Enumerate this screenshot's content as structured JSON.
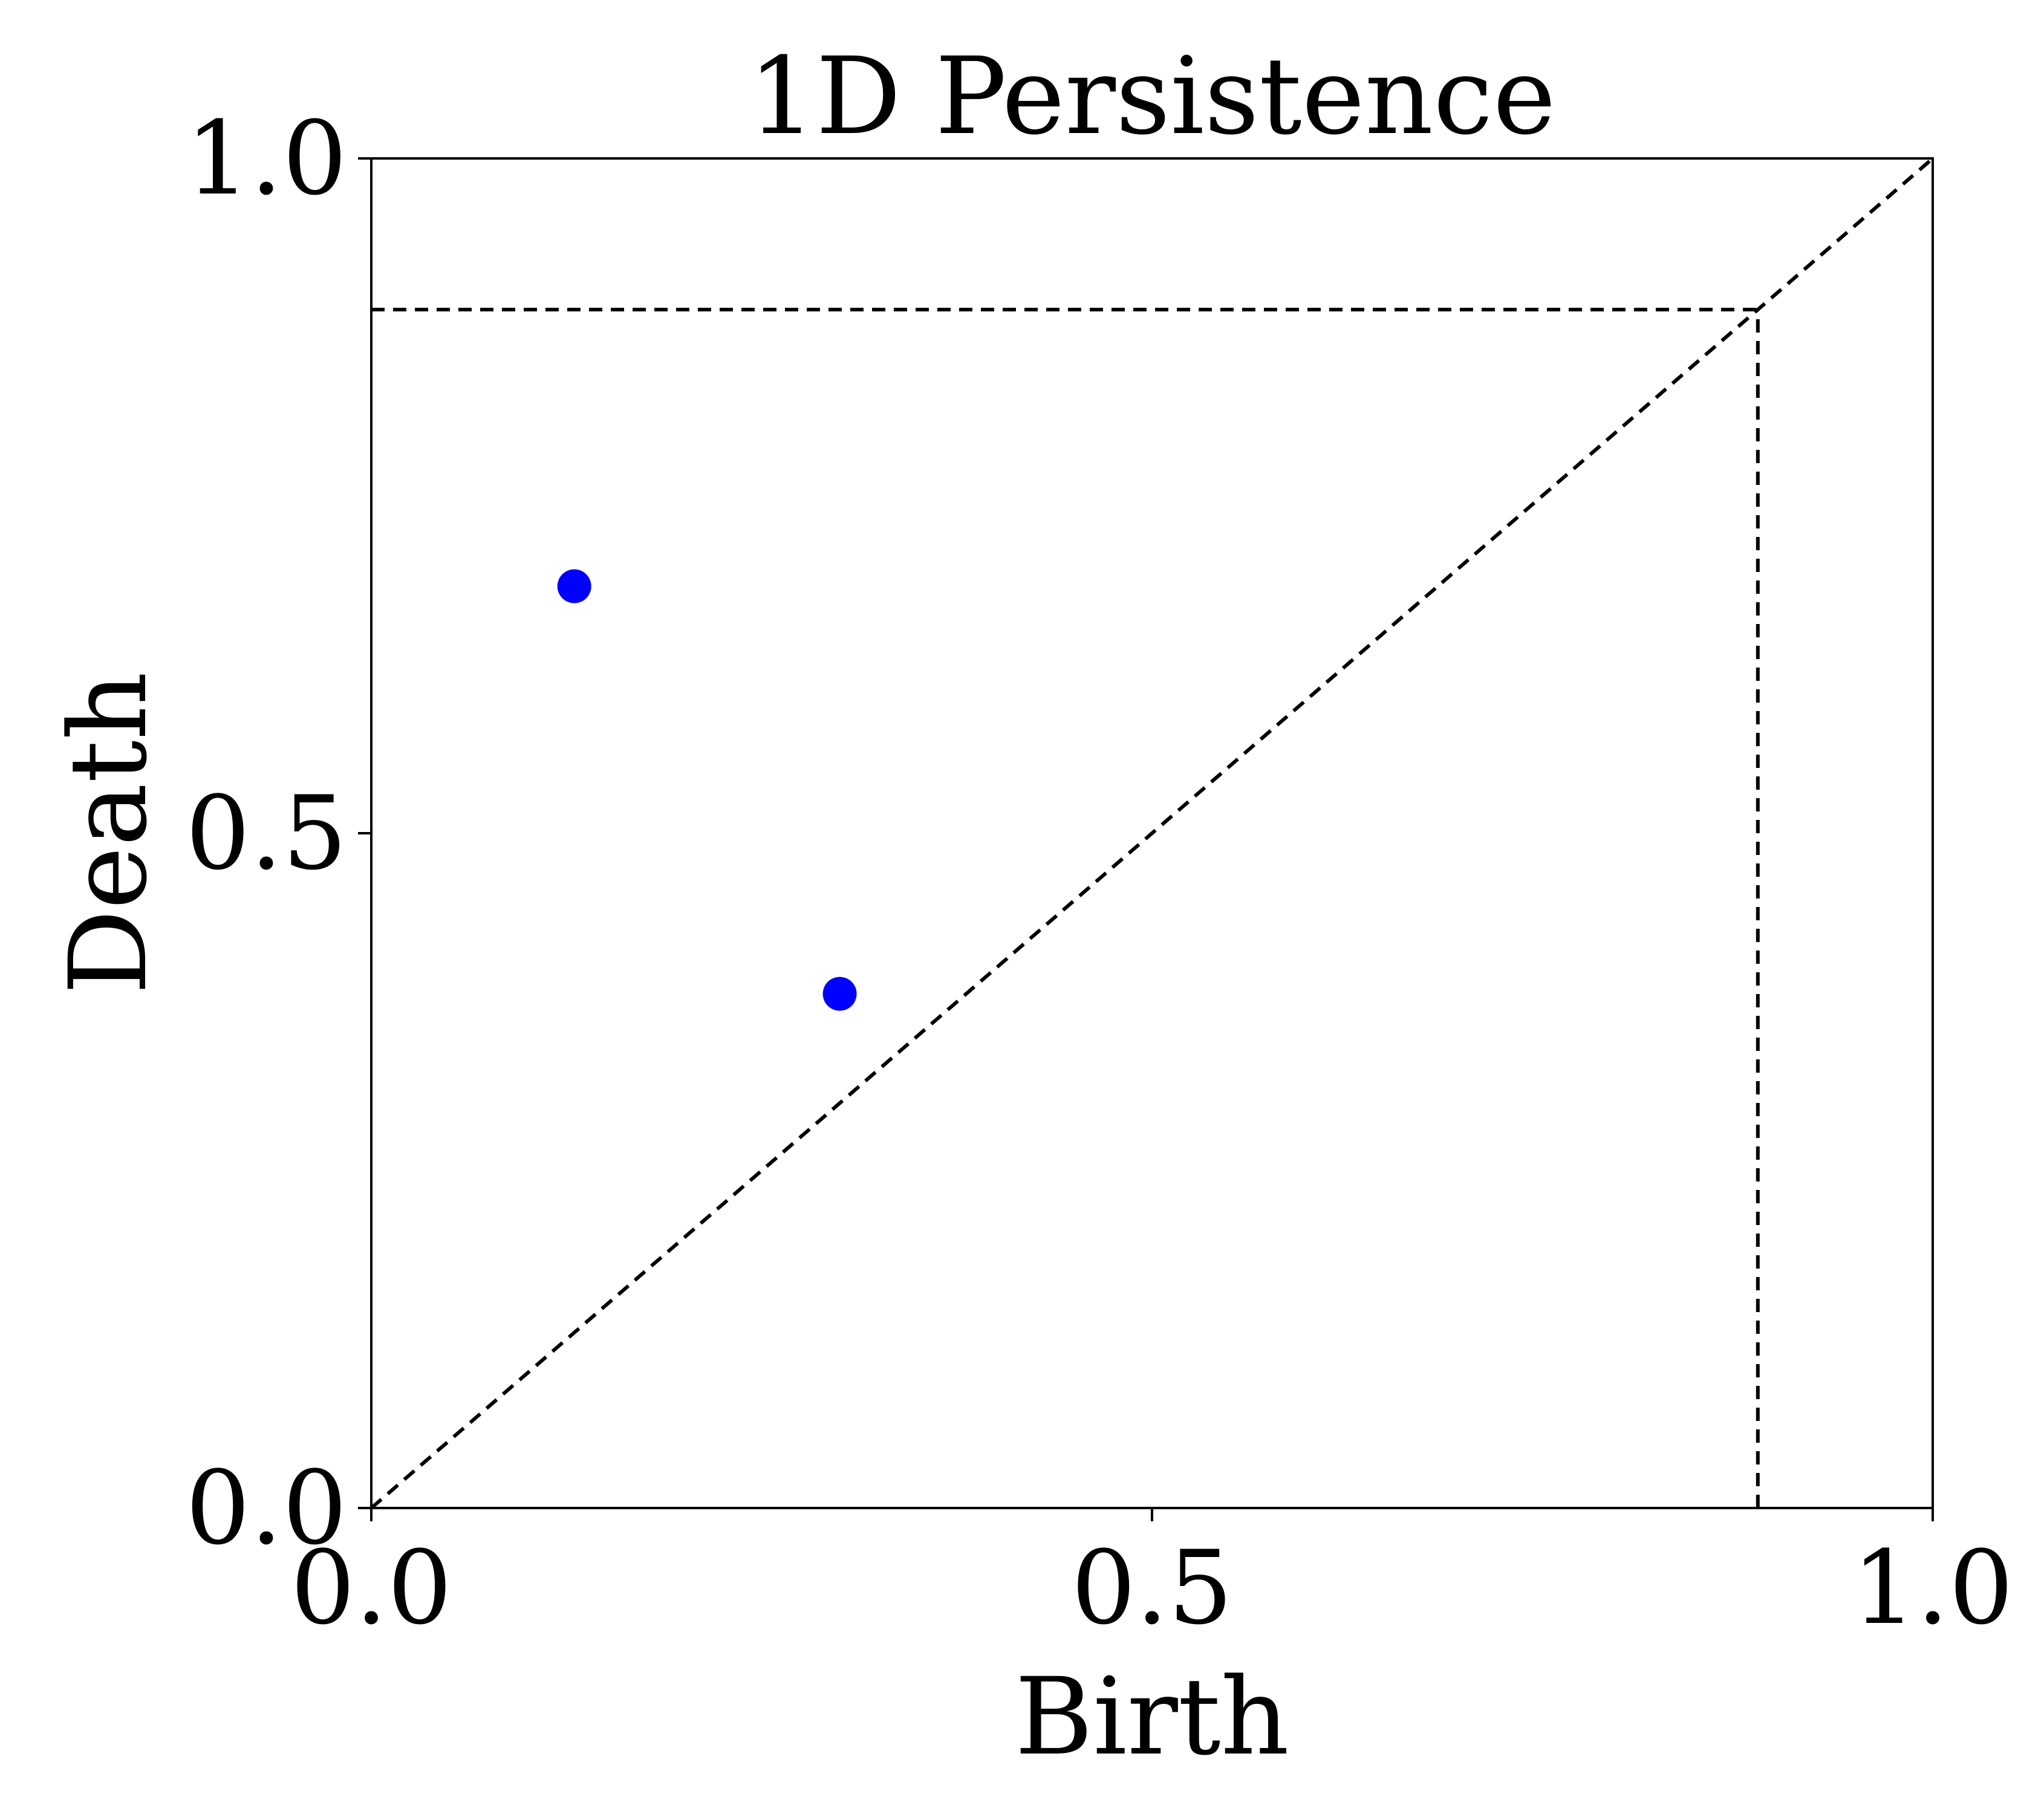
{
  "chart_data": {
    "type": "scatter",
    "title": "1D Persistence",
    "xlabel": "Birth",
    "ylabel": "Death",
    "xlim": [
      0.0,
      1.0
    ],
    "ylim": [
      0.0,
      1.0
    ],
    "xticks": [
      "0.0",
      "0.5",
      "1.0"
    ],
    "yticks": [
      "0.0",
      "0.5",
      "1.0"
    ],
    "grid": false,
    "legend": "none",
    "point_color": "#0000ff",
    "line_color": "#000000",
    "points": [
      {
        "x": 0.13,
        "y": 0.683
      },
      {
        "x": 0.3,
        "y": 0.381
      }
    ],
    "reference_lines": [
      {
        "kind": "diagonal",
        "style": "dashed",
        "from": [
          0.0,
          0.0
        ],
        "to": [
          1.0,
          1.0
        ]
      },
      {
        "kind": "horizontal",
        "style": "dashed",
        "y": 0.888,
        "x_range": [
          0.0,
          0.888
        ]
      },
      {
        "kind": "vertical",
        "style": "dashed",
        "x": 0.888,
        "y_range": [
          0.0,
          0.888
        ]
      }
    ]
  }
}
